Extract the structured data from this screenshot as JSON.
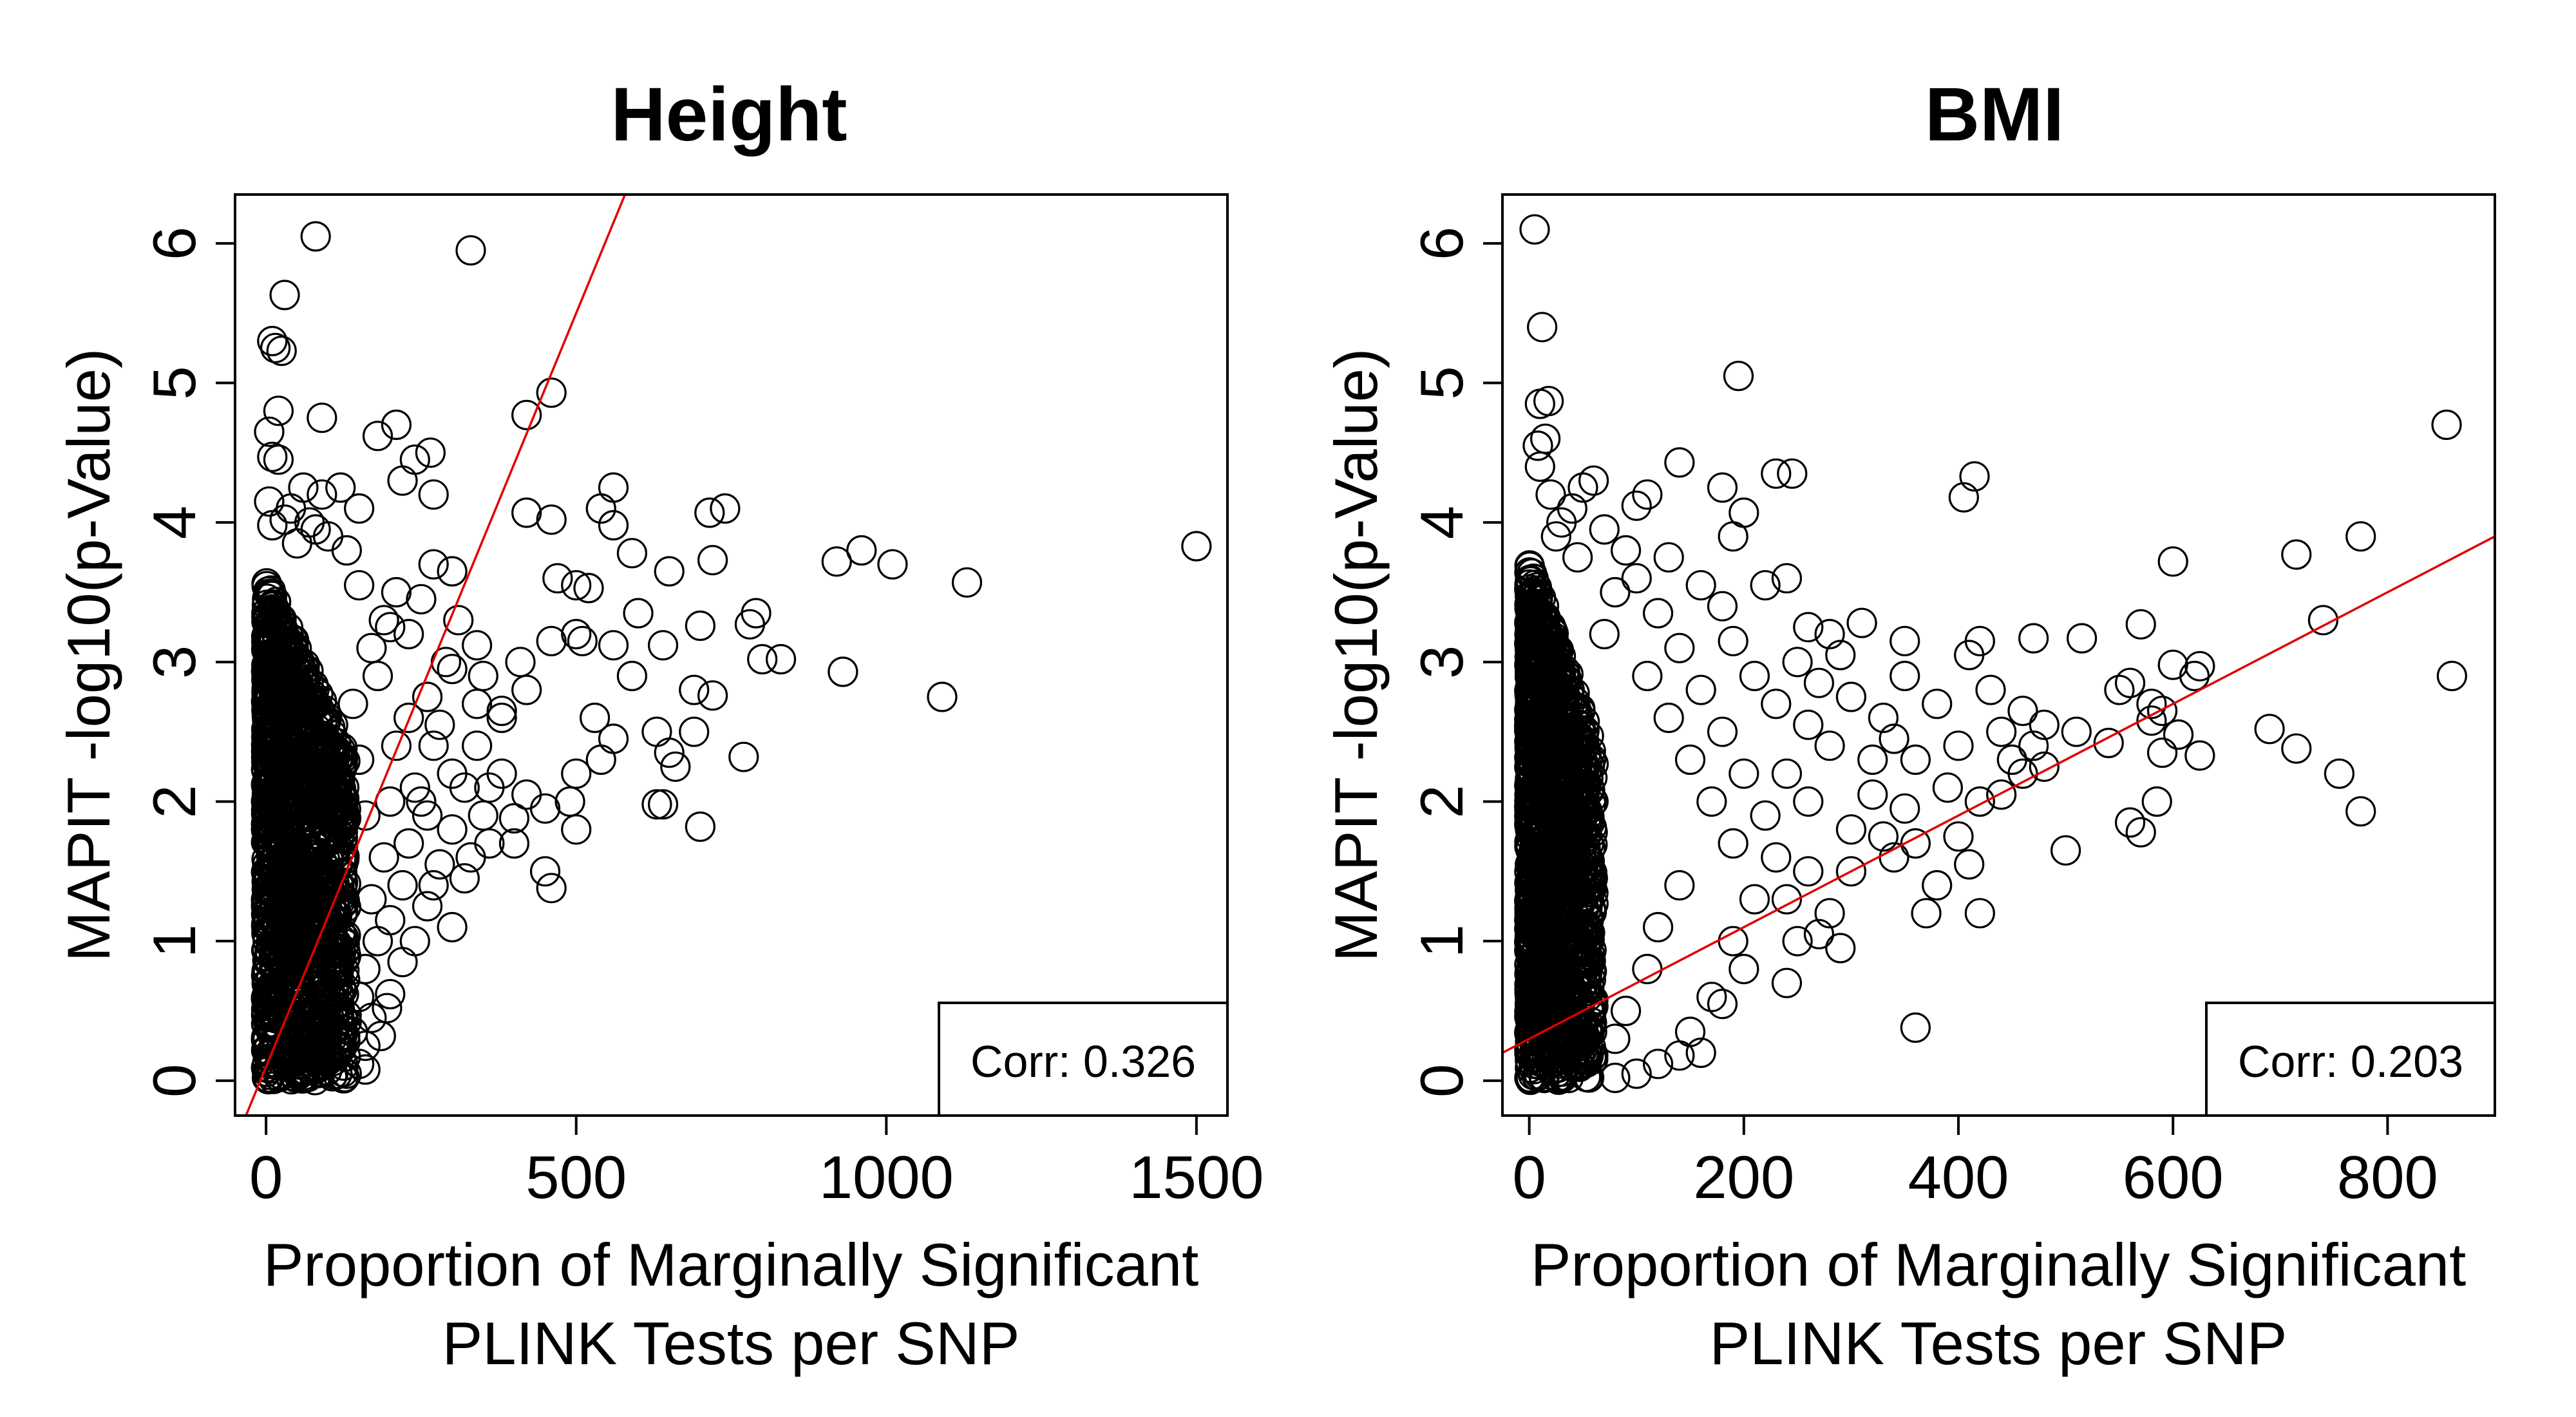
{
  "chart_data": [
    {
      "type": "scatter",
      "title": "Height",
      "xlabel_line1": "Proportion of Marginally Significant",
      "xlabel_line2": "PLINK Tests per SNP",
      "ylabel": "MAPIT -log10(p-Value)",
      "xlim": [
        -50,
        1550
      ],
      "ylim": [
        -0.25,
        6.35
      ],
      "x_ticks": [
        0,
        500,
        1000,
        1500
      ],
      "x_tick_labels": [
        "0",
        "500",
        "1000",
        "1500"
      ],
      "y_ticks": [
        0,
        1,
        2,
        3,
        4,
        5,
        6
      ],
      "y_tick_labels": [
        "0",
        "1",
        "2",
        "3",
        "4",
        "5",
        "6"
      ],
      "correlation_label": "Corr: 0.326",
      "legend_position": "bottom-right",
      "fit_line": {
        "intercept": 0.1,
        "slope": 0.0108,
        "color": "#e00000"
      },
      "dense_cluster": {
        "x_range": [
          0,
          130
        ],
        "y_range": [
          0,
          3.6
        ]
      },
      "points": [
        [
          80,
          6.05
        ],
        [
          330,
          5.95
        ],
        [
          30,
          5.63
        ],
        [
          10,
          5.3
        ],
        [
          15,
          5.25
        ],
        [
          25,
          5.23
        ],
        [
          20,
          4.8
        ],
        [
          90,
          4.75
        ],
        [
          210,
          4.7
        ],
        [
          460,
          4.93
        ],
        [
          420,
          4.77
        ],
        [
          5,
          4.65
        ],
        [
          10,
          4.47
        ],
        [
          20,
          4.45
        ],
        [
          180,
          4.62
        ],
        [
          220,
          4.3
        ],
        [
          240,
          4.45
        ],
        [
          265,
          4.5
        ],
        [
          270,
          4.2
        ],
        [
          560,
          4.25
        ],
        [
          540,
          4.1
        ],
        [
          560,
          3.98
        ],
        [
          420,
          4.07
        ],
        [
          460,
          4.02
        ],
        [
          740,
          4.1
        ],
        [
          715,
          4.07
        ],
        [
          470,
          3.6
        ],
        [
          500,
          3.55
        ],
        [
          520,
          3.53
        ],
        [
          590,
          3.78
        ],
        [
          650,
          3.65
        ],
        [
          720,
          3.73
        ],
        [
          920,
          3.72
        ],
        [
          960,
          3.8
        ],
        [
          1010,
          3.7
        ],
        [
          1500,
          3.83
        ],
        [
          1130,
          3.57
        ],
        [
          790,
          3.35
        ],
        [
          780,
          3.27
        ],
        [
          600,
          3.35
        ],
        [
          560,
          3.12
        ],
        [
          500,
          3.2
        ],
        [
          510,
          3.15
        ],
        [
          460,
          3.15
        ],
        [
          410,
          3.0
        ],
        [
          350,
          2.9
        ],
        [
          340,
          3.12
        ],
        [
          300,
          2.95
        ],
        [
          380,
          2.65
        ],
        [
          420,
          2.8
        ],
        [
          530,
          2.6
        ],
        [
          590,
          2.9
        ],
        [
          640,
          3.12
        ],
        [
          700,
          3.26
        ],
        [
          690,
          2.8
        ],
        [
          720,
          2.76
        ],
        [
          800,
          3.02
        ],
        [
          830,
          3.02
        ],
        [
          930,
          2.93
        ],
        [
          1090,
          2.75
        ],
        [
          630,
          2.5
        ],
        [
          650,
          2.35
        ],
        [
          660,
          2.25
        ],
        [
          690,
          2.5
        ],
        [
          770,
          2.32
        ],
        [
          560,
          2.45
        ],
        [
          540,
          2.3
        ],
        [
          500,
          2.2
        ],
        [
          490,
          2.0
        ],
        [
          630,
          1.98
        ],
        [
          640,
          1.98
        ],
        [
          700,
          1.82
        ],
        [
          500,
          1.8
        ],
        [
          450,
          1.95
        ],
        [
          420,
          2.05
        ],
        [
          380,
          2.2
        ],
        [
          340,
          2.4
        ],
        [
          450,
          1.5
        ],
        [
          460,
          1.38
        ],
        [
          400,
          1.7
        ],
        [
          350,
          1.9
        ],
        [
          300,
          1.8
        ],
        [
          330,
          1.6
        ],
        [
          280,
          1.55
        ],
        [
          260,
          1.25
        ],
        [
          240,
          1.0
        ],
        [
          220,
          0.85
        ],
        [
          200,
          0.62
        ],
        [
          195,
          0.52
        ],
        [
          185,
          0.32
        ],
        [
          170,
          0.45
        ],
        [
          160,
          0.25
        ],
        [
          150,
          0.12
        ],
        [
          160,
          0.08
        ],
        [
          130,
          0.05
        ],
        [
          270,
          1.4
        ],
        [
          300,
          1.1
        ],
        [
          320,
          1.45
        ],
        [
          360,
          1.7
        ],
        [
          400,
          1.88
        ],
        [
          380,
          2.6
        ],
        [
          280,
          2.55
        ],
        [
          300,
          2.2
        ],
        [
          320,
          2.1
        ],
        [
          260,
          2.75
        ],
        [
          230,
          3.2
        ],
        [
          210,
          3.5
        ],
        [
          270,
          3.7
        ],
        [
          300,
          3.65
        ],
        [
          250,
          3.45
        ],
        [
          200,
          3.25
        ],
        [
          180,
          2.9
        ],
        [
          210,
          2.4
        ],
        [
          240,
          2.1
        ],
        [
          260,
          1.9
        ],
        [
          230,
          1.7
        ],
        [
          220,
          1.4
        ],
        [
          200,
          1.15
        ],
        [
          180,
          1.0
        ],
        [
          160,
          0.8
        ],
        [
          150,
          0.6
        ],
        [
          140,
          0.35
        ],
        [
          360,
          2.1
        ],
        [
          340,
          2.7
        ],
        [
          310,
          3.3
        ],
        [
          290,
          3.0
        ],
        [
          270,
          2.4
        ],
        [
          250,
          2.0
        ],
        [
          230,
          2.6
        ],
        [
          200,
          2.0
        ],
        [
          190,
          1.6
        ],
        [
          170,
          1.3
        ],
        [
          160,
          1.9
        ],
        [
          150,
          2.3
        ],
        [
          140,
          2.7
        ],
        [
          170,
          3.1
        ],
        [
          190,
          3.3
        ],
        [
          150,
          3.55
        ],
        [
          130,
          3.8
        ],
        [
          100,
          3.9
        ],
        [
          70,
          4.0
        ],
        [
          40,
          4.1
        ],
        [
          60,
          4.25
        ],
        [
          90,
          4.2
        ],
        [
          120,
          4.25
        ],
        [
          150,
          4.1
        ],
        [
          80,
          3.95
        ],
        [
          50,
          3.85
        ],
        [
          30,
          4.02
        ],
        [
          10,
          3.98
        ],
        [
          5,
          4.15
        ]
      ]
    },
    {
      "type": "scatter",
      "title": "BMI",
      "xlabel_line1": "Proportion of Marginally Significant",
      "xlabel_line2": "PLINK Tests per SNP",
      "ylabel": "MAPIT -log10(p-Value)",
      "xlim": [
        -25,
        900
      ],
      "ylim": [
        -0.25,
        6.35
      ],
      "x_ticks": [
        0,
        200,
        400,
        600,
        800
      ],
      "x_tick_labels": [
        "0",
        "200",
        "400",
        "600",
        "800"
      ],
      "y_ticks": [
        0,
        1,
        2,
        3,
        4,
        5,
        6
      ],
      "y_tick_labels": [
        "0",
        "1",
        "2",
        "3",
        "4",
        "5",
        "6"
      ],
      "correlation_label": "Corr: 0.203",
      "legend_position": "bottom-right",
      "fit_line": {
        "intercept": 0.3,
        "slope": 0.004,
        "color": "#e00000"
      },
      "dense_cluster": {
        "x_range": [
          0,
          60
        ],
        "y_range": [
          0,
          3.7
        ]
      },
      "points": [
        [
          5,
          6.1
        ],
        [
          12,
          5.4
        ],
        [
          10,
          4.85
        ],
        [
          18,
          4.87
        ],
        [
          15,
          4.6
        ],
        [
          8,
          4.55
        ],
        [
          195,
          5.05
        ],
        [
          140,
          4.43
        ],
        [
          245,
          4.35
        ],
        [
          230,
          4.35
        ],
        [
          415,
          4.33
        ],
        [
          405,
          4.18
        ],
        [
          855,
          4.7
        ],
        [
          860,
          2.9
        ],
        [
          775,
          3.9
        ],
        [
          740,
          3.3
        ],
        [
          715,
          3.77
        ],
        [
          600,
          3.72
        ],
        [
          190,
          3.9
        ],
        [
          200,
          4.07
        ],
        [
          180,
          4.25
        ],
        [
          110,
          4.2
        ],
        [
          100,
          4.12
        ],
        [
          60,
          4.3
        ],
        [
          50,
          4.25
        ],
        [
          70,
          3.95
        ],
        [
          130,
          3.75
        ],
        [
          160,
          3.55
        ],
        [
          180,
          3.4
        ],
        [
          220,
          3.55
        ],
        [
          240,
          3.6
        ],
        [
          260,
          3.25
        ],
        [
          280,
          3.2
        ],
        [
          310,
          3.28
        ],
        [
          350,
          3.15
        ],
        [
          410,
          3.05
        ],
        [
          420,
          3.15
        ],
        [
          470,
          3.17
        ],
        [
          515,
          3.17
        ],
        [
          570,
          3.27
        ],
        [
          600,
          2.98
        ],
        [
          625,
          2.97
        ],
        [
          550,
          2.8
        ],
        [
          560,
          2.85
        ],
        [
          580,
          2.7
        ],
        [
          620,
          2.9
        ],
        [
          590,
          2.65
        ],
        [
          540,
          2.42
        ],
        [
          510,
          2.5
        ],
        [
          480,
          2.25
        ],
        [
          460,
          2.2
        ],
        [
          450,
          2.3
        ],
        [
          440,
          2.05
        ],
        [
          420,
          2.0
        ],
        [
          400,
          1.75
        ],
        [
          380,
          1.4
        ],
        [
          370,
          1.2
        ],
        [
          360,
          0.38
        ],
        [
          410,
          1.55
        ],
        [
          420,
          1.2
        ],
        [
          500,
          1.65
        ],
        [
          560,
          1.85
        ],
        [
          570,
          1.78
        ],
        [
          585,
          2.0
        ],
        [
          590,
          2.35
        ],
        [
          605,
          2.48
        ],
        [
          625,
          2.33
        ],
        [
          690,
          2.52
        ],
        [
          715,
          2.38
        ],
        [
          755,
          2.2
        ],
        [
          775,
          1.93
        ],
        [
          580,
          2.58
        ],
        [
          480,
          2.55
        ],
        [
          430,
          2.8
        ],
        [
          380,
          2.7
        ],
        [
          350,
          2.9
        ],
        [
          330,
          2.6
        ],
        [
          300,
          2.75
        ],
        [
          280,
          2.4
        ],
        [
          260,
          2.55
        ],
        [
          240,
          2.2
        ],
        [
          260,
          2.0
        ],
        [
          300,
          1.8
        ],
        [
          320,
          2.05
        ],
        [
          340,
          1.6
        ],
        [
          360,
          1.7
        ],
        [
          300,
          1.5
        ],
        [
          280,
          1.2
        ],
        [
          290,
          0.95
        ],
        [
          250,
          1.0
        ],
        [
          240,
          0.7
        ],
        [
          200,
          0.8
        ],
        [
          180,
          0.55
        ],
        [
          160,
          0.2
        ],
        [
          140,
          0.18
        ],
        [
          120,
          0.12
        ],
        [
          100,
          0.05
        ],
        [
          80,
          0.02
        ],
        [
          150,
          0.35
        ],
        [
          170,
          0.6
        ],
        [
          190,
          1.0
        ],
        [
          210,
          1.3
        ],
        [
          230,
          1.6
        ],
        [
          220,
          1.9
        ],
        [
          200,
          2.2
        ],
        [
          180,
          2.5
        ],
        [
          160,
          2.8
        ],
        [
          140,
          3.1
        ],
        [
          120,
          3.35
        ],
        [
          100,
          3.6
        ],
        [
          90,
          3.8
        ],
        [
          80,
          3.5
        ],
        [
          70,
          3.2
        ],
        [
          110,
          2.9
        ],
        [
          130,
          2.6
        ],
        [
          150,
          2.3
        ],
        [
          170,
          2.0
        ],
        [
          190,
          1.7
        ],
        [
          140,
          1.4
        ],
        [
          120,
          1.1
        ],
        [
          110,
          0.8
        ],
        [
          90,
          0.5
        ],
        [
          80,
          0.3
        ],
        [
          400,
          2.4
        ],
        [
          390,
          2.1
        ],
        [
          360,
          2.3
        ],
        [
          340,
          2.45
        ],
        [
          320,
          2.3
        ],
        [
          440,
          2.5
        ],
        [
          460,
          2.65
        ],
        [
          470,
          2.4
        ],
        [
          350,
          1.95
        ],
        [
          330,
          1.75
        ],
        [
          260,
          1.5
        ],
        [
          240,
          1.3
        ],
        [
          270,
          1.05
        ],
        [
          230,
          2.7
        ],
        [
          210,
          2.9
        ],
        [
          190,
          3.15
        ],
        [
          250,
          3.0
        ],
        [
          270,
          2.85
        ],
        [
          290,
          3.05
        ],
        [
          30,
          4.0
        ],
        [
          20,
          4.2
        ],
        [
          40,
          4.1
        ],
        [
          10,
          4.4
        ],
        [
          25,
          3.9
        ],
        [
          45,
          3.75
        ]
      ]
    }
  ]
}
